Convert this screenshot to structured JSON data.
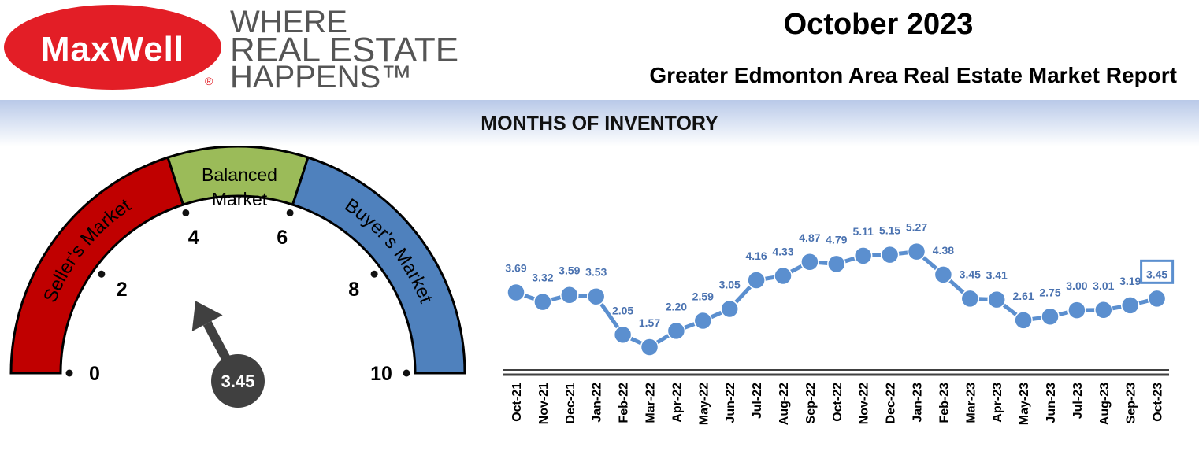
{
  "header": {
    "logo_text": "MaxWell",
    "registered_mark": "®",
    "tagline": [
      "WHERE",
      "REAL ESTATE",
      "HAPPENS™"
    ],
    "title": "October 2023",
    "subtitle": "Greater Edmonton Area Real Estate Market Report"
  },
  "section_title": "MONTHS OF INVENTORY",
  "colors": {
    "brand_red": "#e31e26",
    "sellers": "#c00000",
    "balanced": "#9bbb59",
    "buyers": "#4f81bd",
    "needle": "#404040",
    "line": "#5b8fcf",
    "label": "#4a72b0"
  },
  "gauge": {
    "zones": [
      "Seller's Market",
      "Balanced Market",
      "Buyer's Market"
    ],
    "balanced_lines": [
      "Balanced",
      "Market"
    ],
    "ticks": [
      "0",
      "2",
      "4",
      "6",
      "8",
      "10"
    ],
    "min": 0,
    "max": 10,
    "value": 3.45,
    "value_label": "3.45"
  },
  "chart_data": {
    "type": "line",
    "categories": [
      "Oct-21",
      "Nov-21",
      "Dec-21",
      "Jan-22",
      "Feb-22",
      "Mar-22",
      "Apr-22",
      "May-22",
      "Jun-22",
      "Jul-22",
      "Aug-22",
      "Sep-22",
      "Oct-22",
      "Nov-22",
      "Dec-22",
      "Jan-23",
      "Feb-23",
      "Mar-23",
      "Apr-23",
      "May-23",
      "Jun-23",
      "Jul-23",
      "Aug-23",
      "Sep-23",
      "Oct-23"
    ],
    "values": [
      3.69,
      3.32,
      3.59,
      3.53,
      2.05,
      1.57,
      2.2,
      2.59,
      3.05,
      4.16,
      4.33,
      4.87,
      4.79,
      5.11,
      5.15,
      5.27,
      4.38,
      3.45,
      3.41,
      2.61,
      2.75,
      3.0,
      3.01,
      3.19,
      3.45
    ],
    "labels": [
      "3.69",
      "3.32",
      "3.59",
      "3.53",
      "2.05",
      "1.57",
      "2.20",
      "2.59",
      "3.05",
      "4.16",
      "4.33",
      "4.87",
      "4.79",
      "5.11",
      "5.15",
      "5.27",
      "4.38",
      "3.45",
      "3.41",
      "2.61",
      "2.75",
      "3.00",
      "3.01",
      "3.19",
      "3.45"
    ],
    "highlight_last": true,
    "grid": false,
    "legend": "none"
  }
}
